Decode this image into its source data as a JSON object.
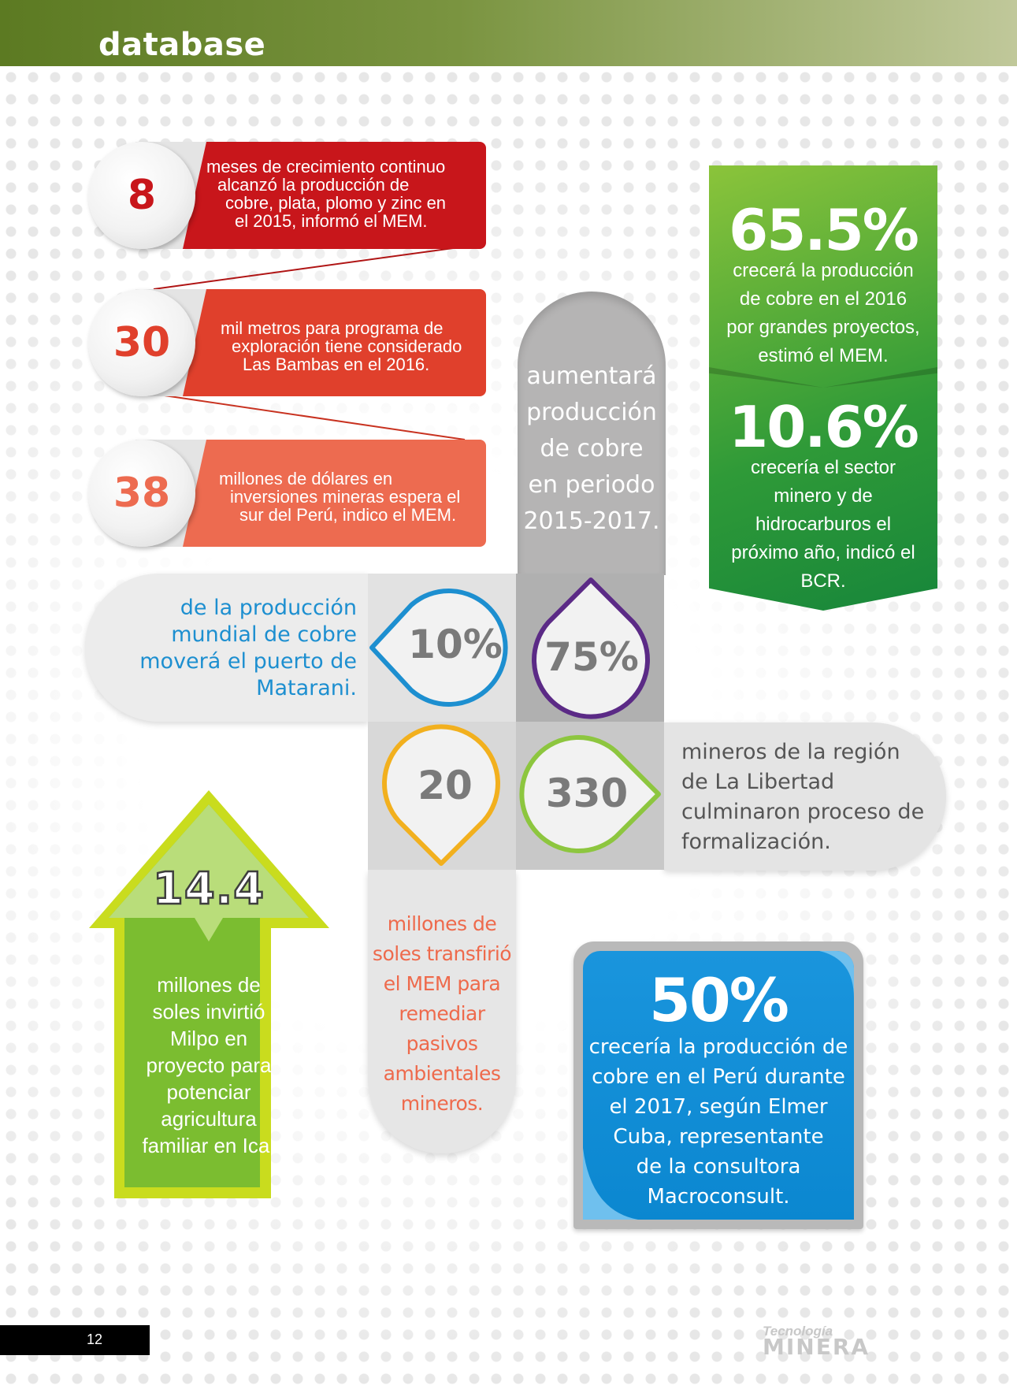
{
  "header": {
    "title": "database"
  },
  "ribbons": [
    {
      "number": "8",
      "lines": [
        "meses de crecimiento continuo",
        "alcanzó la producción de",
        "cobre, plata, plomo y zinc en",
        "el 2015, informó el MEM."
      ],
      "color": "#c8161b"
    },
    {
      "number": "30",
      "lines": [
        "mil metros para programa de",
        "exploración tiene considerado",
        "Las Bambas en el 2016."
      ],
      "color": "#e0402c"
    },
    {
      "number": "38",
      "lines": [
        "millones de dólares en",
        "inversiones mineras espera el",
        "sur del Perú, indico el MEM."
      ],
      "color": "#ed6b50"
    }
  ],
  "green_box": {
    "stat1": "65.5%",
    "text1": [
      "crecerá la producción",
      "de cobre en el 2016",
      "por grandes proyectos,",
      "estimó el MEM."
    ],
    "stat2": "10.6%",
    "text2": [
      "crecería el sector",
      "minero y de",
      "hidrocarburos el",
      "próximo año, indicó el",
      "BCR."
    ]
  },
  "top_pill": {
    "lines": [
      "aumentará",
      "producción",
      "de cobre",
      "en periodo",
      "2015-2017."
    ]
  },
  "left_pill": {
    "lines": [
      "de la producción",
      "mundial de cobre",
      "moverá el puerto de",
      "Matarani."
    ]
  },
  "right_pill": {
    "lines": [
      "mineros de la región",
      "de La Libertad",
      "culminaron proceso de",
      "formalización."
    ]
  },
  "bottom_pill": {
    "lines": [
      "millones de",
      "soles transfirió",
      "el MEM para",
      "remediar",
      "pasivos",
      "ambientales",
      "mineros."
    ]
  },
  "center": {
    "tl": {
      "value": "10%",
      "color": "#1d8fd0"
    },
    "tr": {
      "value": "75%",
      "color": "#5b2a86"
    },
    "bl": {
      "value": "20",
      "color": "#f2b01e"
    },
    "br": {
      "value": "330",
      "color": "#8dc63f"
    }
  },
  "arrow": {
    "number": "14.4",
    "lines": [
      "millones de",
      "soles invirtió",
      "Milpo en",
      "proyecto para",
      "potenciar",
      "agricultura",
      "familiar en Ica."
    ]
  },
  "blue_box": {
    "stat": "50%",
    "lines": [
      "crecería la producción de",
      "cobre en el Perú durante",
      "el 2017, según Elmer",
      "Cuba, representante",
      "de la consultora",
      "Macroconsult."
    ]
  },
  "footer": {
    "page": "12",
    "brand_top": "Tecnología",
    "brand_bottom": "MINERA"
  }
}
